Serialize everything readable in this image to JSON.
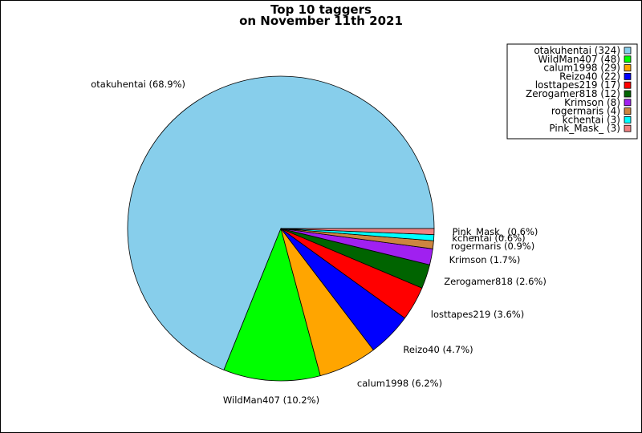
{
  "chart_data": {
    "type": "pie",
    "title": [
      "Top 10 taggers",
      "on November 11th 2021"
    ],
    "legend_position": "top-right",
    "slices": [
      {
        "name": "otakuhentai",
        "value": 324,
        "percent": "68.9%",
        "color": "#87CEEB",
        "legend": "otakuhentai (324)",
        "label": "otakuhentai (68.9%)"
      },
      {
        "name": "WildMan407",
        "value": 48,
        "percent": "10.2%",
        "color": "#00FF00",
        "legend": "WildMan407 (48)",
        "label": "WildMan407 (10.2%)"
      },
      {
        "name": "calum1998",
        "value": 29,
        "percent": "6.2%",
        "color": "#FFA500",
        "legend": "calum1998 (29)",
        "label": "calum1998 (6.2%)"
      },
      {
        "name": "Reizo40",
        "value": 22,
        "percent": "4.7%",
        "color": "#0000FF",
        "legend": "Reizo40 (22)",
        "label": "Reizo40 (4.7%)"
      },
      {
        "name": "losttapes219",
        "value": 17,
        "percent": "3.6%",
        "color": "#FF0000",
        "legend": "losttapes219 (17)",
        "label": "losttapes219 (3.6%)"
      },
      {
        "name": "Zerogamer818",
        "value": 12,
        "percent": "2.6%",
        "color": "#006400",
        "legend": "Zerogamer818 (12)",
        "label": "Zerogamer818 (2.6%)"
      },
      {
        "name": "Krimson",
        "value": 8,
        "percent": "1.7%",
        "color": "#A020F0",
        "legend": "Krimson (8)",
        "label": "Krimson (1.7%)"
      },
      {
        "name": "rogermaris",
        "value": 4,
        "percent": "0.9%",
        "color": "#CD853F",
        "legend": "rogermaris (4)",
        "label": "rogermaris (0.9%)"
      },
      {
        "name": "kchentai",
        "value": 3,
        "percent": "0.6%",
        "color": "#00FFFF",
        "legend": "kchentai (3)",
        "label": "kchentai (0.6%)"
      },
      {
        "name": "Pink_Mask_",
        "value": 3,
        "percent": "0.6%",
        "color": "#F08080",
        "legend": "Pink_Mask_ (3)",
        "label": "Pink_Mask_ (0.6%)"
      }
    ]
  }
}
